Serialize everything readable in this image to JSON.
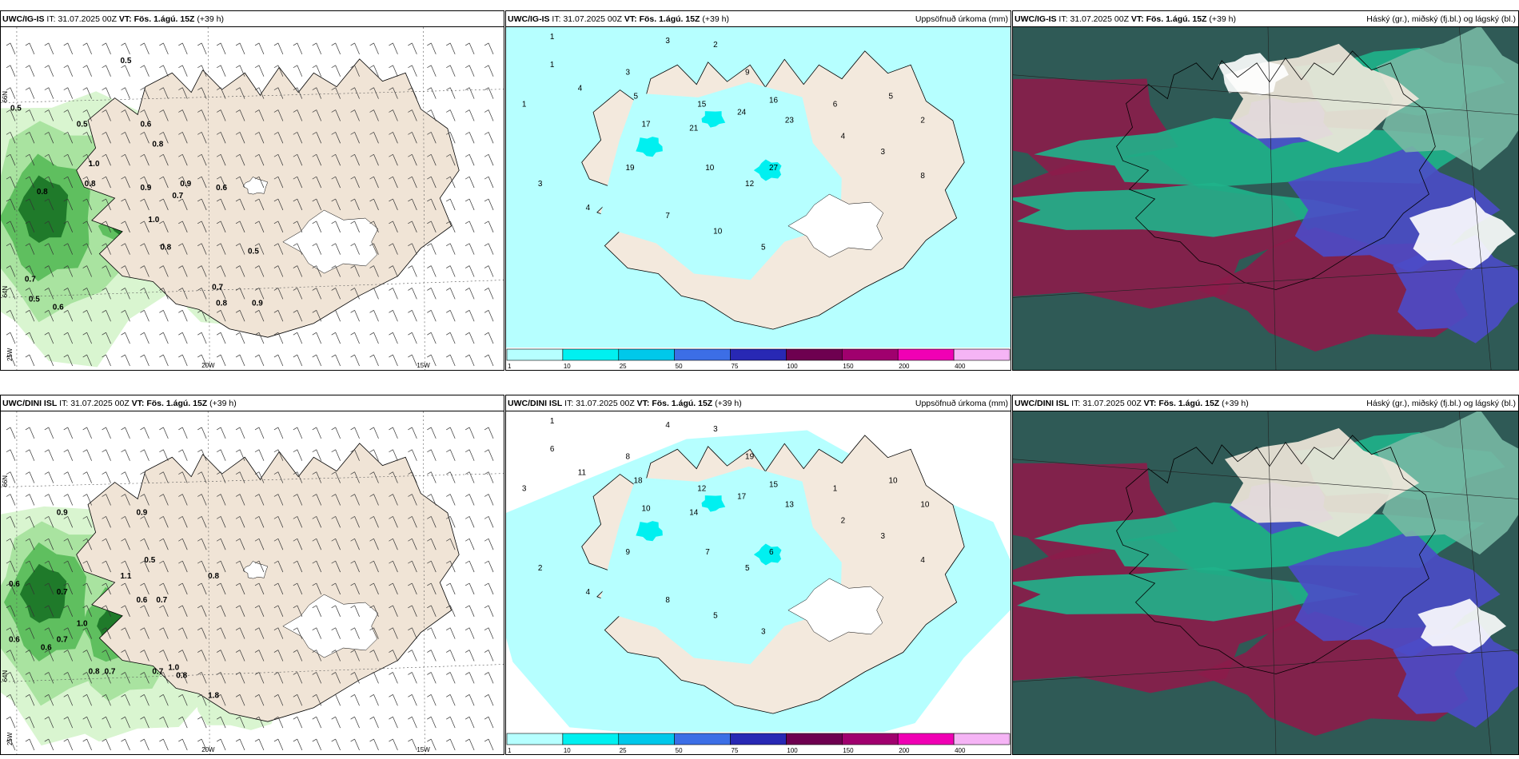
{
  "panels": [
    {
      "id": "tl",
      "model": "UWC/IG-IS",
      "it_label": "IT:",
      "it": "31.07.2025 00Z",
      "vt_label": "VT:",
      "vt": "Fös. 1.ágú. 15Z",
      "lead": "(+39 h)",
      "right": ""
    },
    {
      "id": "tm",
      "model": "UWC/IG-IS",
      "it_label": "IT:",
      "it": "31.07.2025 00Z",
      "vt_label": "VT:",
      "vt": "Fös. 1.ágú. 15Z",
      "lead": "(+39 h)",
      "right": "Uppsöfnuð úrkoma (mm)"
    },
    {
      "id": "tr",
      "model": "UWC/IG-IS",
      "it_label": "IT:",
      "it": "31.07.2025 00Z",
      "vt_label": "VT:",
      "vt": "Fös. 1.ágú. 15Z",
      "lead": "(+39 h)",
      "right": "Háský (gr.), miðský (fj.bl.) og lágský (bl.)"
    },
    {
      "id": "bl",
      "model": "UWC/DINI ISL",
      "it_label": "IT:",
      "it": "31.07.2025 00Z",
      "vt_label": "VT:",
      "vt": "Fös. 1.ágú. 15Z",
      "lead": "(+39 h)",
      "right": ""
    },
    {
      "id": "bm",
      "model": "UWC/DINI ISL",
      "it_label": "IT:",
      "it": "31.07.2025 00Z",
      "vt_label": "VT:",
      "vt": "Fös. 1.ágú. 15Z",
      "lead": "(+39 h)",
      "right": "Uppsöfnuð úrkoma (mm)"
    },
    {
      "id": "br",
      "model": "UWC/DINI ISL",
      "it_label": "IT:",
      "it": "31.07.2025 00Z",
      "vt_label": "VT:",
      "vt": "Fös. 1.ágú. 15Z",
      "lead": "(+39 h)",
      "right": "Háský (gr.), miðský (fj.bl.) og lágský (bl.)"
    }
  ],
  "axis_labels": {
    "lat66": "66N",
    "lat64": "64N",
    "lon25": "25W",
    "lon20": "20W",
    "lon15": "15W"
  },
  "colorbar": {
    "ticks": [
      "1",
      "10",
      "25",
      "50",
      "75",
      "100",
      "150",
      "200",
      "400"
    ],
    "colors": [
      "#b6ffff",
      "#00f0f0",
      "#00c8ea",
      "#3c6ee6",
      "#2828b4",
      "#6e0050",
      "#a0006e",
      "#f000b4",
      "#f5b4f5"
    ]
  },
  "wind_labels_top": [
    "0.5",
    "0.5",
    "0.5",
    "0.6",
    "0.8",
    "1.0",
    "0.8",
    "0.9",
    "0.9",
    "1.0",
    "0.8",
    "0.7",
    "0.6",
    "0.8",
    "0.7",
    "0.5",
    "0.6",
    "0.7",
    "0.8",
    "0.5",
    "0.9"
  ],
  "wind_labels_bottom": [
    "0.9",
    "0.9",
    "0.5",
    "0.6",
    "0.7",
    "1.1",
    "0.7",
    "0.6",
    "0.8",
    "1.0",
    "0.6",
    "0.7",
    "0.6",
    "0.7",
    "0.8",
    "0.7",
    "1.0",
    "0.8",
    "1.8"
  ],
  "precip_labels_top": [
    "1",
    "3",
    "2",
    "1",
    "3",
    "4",
    "9",
    "5",
    "16",
    "15",
    "24",
    "23",
    "21",
    "17",
    "19",
    "10",
    "27",
    "12",
    "4",
    "3",
    "8",
    "6",
    "5",
    "2",
    "1",
    "3",
    "4",
    "7",
    "10",
    "5"
  ],
  "precip_labels_bottom": [
    "1",
    "4",
    "3",
    "6",
    "8",
    "11",
    "19",
    "18",
    "15",
    "12",
    "17",
    "13",
    "14",
    "10",
    "9",
    "7",
    "6",
    "5",
    "2",
    "3",
    "4",
    "1",
    "10",
    "10",
    "3",
    "2",
    "4",
    "8",
    "5",
    "3"
  ]
}
